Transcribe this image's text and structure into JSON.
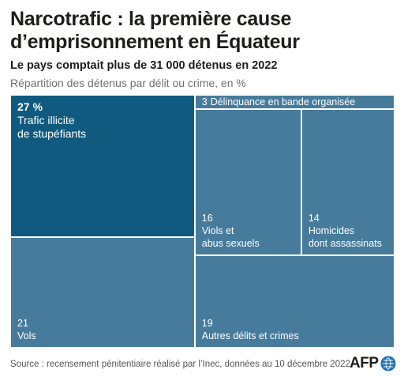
{
  "header": {
    "title": "Narcotrafic : la première cause\nd’emprisonnement en Équateur",
    "subtitle": "Le pays comptait plus de 31 000 détenus en 2022",
    "description": "Répartition des détenus par délit ou crime, en %"
  },
  "chart_data": {
    "type": "treemap",
    "unit": "%",
    "items": [
      {
        "label": "Trafic illicite\nde stupéfiants",
        "value": 27,
        "display": "27 %",
        "color": "#0f5a7e"
      },
      {
        "label": "Vols",
        "value": 21,
        "display": "21",
        "color": "#477b9c"
      },
      {
        "label": "Délinquance en bande organisée",
        "value": 3,
        "display": "3",
        "color": "#477b9c"
      },
      {
        "label": "Viols et\nabus sexuels",
        "value": 16,
        "display": "16",
        "color": "#477b9c"
      },
      {
        "label": "Homicides\ndont assassinats",
        "value": 14,
        "display": "14",
        "color": "#477b9c"
      },
      {
        "label": "Autres délits et crimes",
        "value": 19,
        "display": "19",
        "color": "#477b9c"
      }
    ]
  },
  "footer": {
    "source": "Source : recensement pénitentiaire réalisé par l’Inec, données au 10 décembre 2022",
    "logo": "AFP"
  }
}
